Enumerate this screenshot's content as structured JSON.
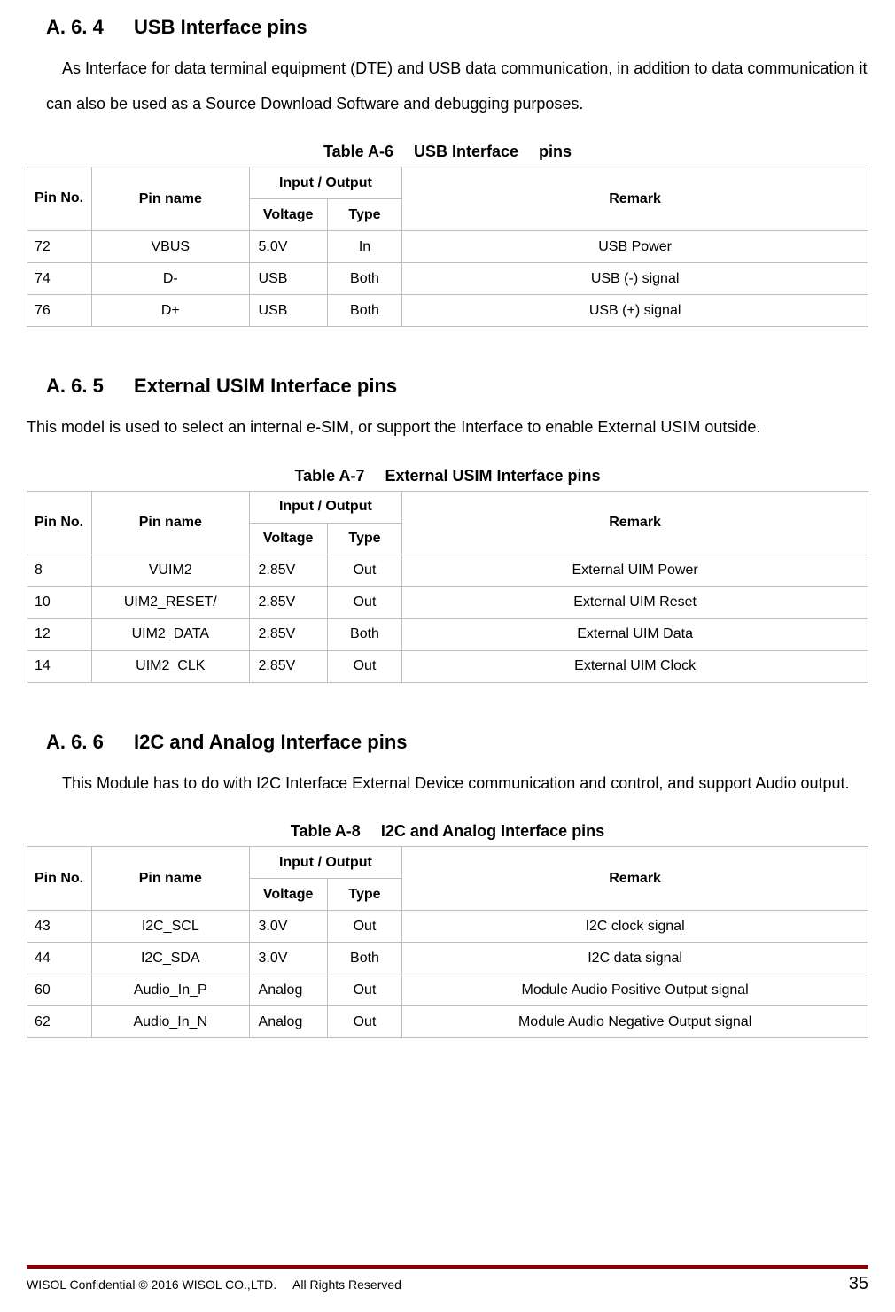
{
  "sections": [
    {
      "heading": "A. 6. 4   USB Interface pins",
      "paragraph": "As Interface for data terminal equipment (DTE) and USB data communication, in addition to data communication it can also be used as a Source Download Software and debugging purposes.",
      "para_style": "indent",
      "table_caption_parts": [
        "Table A-6  USB ",
        "Interface",
        "  pins"
      ],
      "rows": [
        {
          "no": "72",
          "name": "VBUS",
          "voltage": "5.0V",
          "type": "In",
          "remark": "USB Power"
        },
        {
          "no": "74",
          "name": "D-",
          "voltage": "USB",
          "type": "Both",
          "remark": "USB (-) signal"
        },
        {
          "no": "76",
          "name": "D+",
          "voltage": "USB",
          "type": "Both",
          "remark": "USB (+) signal"
        }
      ]
    },
    {
      "heading": "A. 6. 5   External USIM Interface pins",
      "paragraph": "This model is used to select an internal e-SIM, or support the Interface to enable External USIM outside.",
      "para_style": "noindent",
      "table_caption_parts": [
        "Table A-7  ",
        "External USIM Interface",
        " pins"
      ],
      "rows": [
        {
          "no": "8",
          "name": "VUIM2",
          "voltage": "2.85V",
          "type": "Out",
          "remark": "External UIM Power"
        },
        {
          "no": "10",
          "name": "UIM2_RESET/",
          "voltage": "2.85V",
          "type": "Out",
          "remark": "External UIM Reset"
        },
        {
          "no": "12",
          "name": "UIM2_DATA",
          "voltage": "2.85V",
          "type": "Both",
          "remark": "External UIM Data"
        },
        {
          "no": "14",
          "name": "UIM2_CLK",
          "voltage": "2.85V",
          "type": "Out",
          "remark": "External UIM Clock"
        }
      ]
    },
    {
      "heading": "A. 6. 6   I2C and Analog Interface pins",
      "paragraph": "This Module has to do with I2C Interface External Device communication and control, and support Audio output.",
      "para_style": "indent justify",
      "table_caption_parts": [
        "Table A-8  ",
        "I2C and Analog Interface",
        " pins"
      ],
      "rows": [
        {
          "no": "43",
          "name": "I2C_SCL",
          "voltage": "3.0V",
          "type": "Out",
          "remark": "I2C clock signal"
        },
        {
          "no": "44",
          "name": "I2C_SDA",
          "voltage": "3.0V",
          "type": "Both",
          "remark": "I2C data signal"
        },
        {
          "no": "60",
          "name": "Audio_In_P",
          "voltage": "Analog",
          "type": "Out",
          "remark": "Module Audio Positive Output signal"
        },
        {
          "no": "62",
          "name": "Audio_In_N",
          "voltage": "Analog",
          "type": "Out",
          "remark": "Module Audio Negative Output signal"
        }
      ]
    }
  ],
  "table_headers": {
    "pin_no": "Pin No.",
    "pin_name": "Pin name",
    "io": "Input / Output",
    "voltage": "Voltage",
    "type": "Type",
    "remark": "Remark"
  },
  "footer": {
    "left": "WISOL Confidential © 2016 WISOL CO.,LTD.  All Rights Reserved",
    "page": "35",
    "line_color": "#8b0000"
  },
  "style": {
    "text_color": "#000000",
    "border_color": "#bfbfbf",
    "bg_color": "#ffffff"
  }
}
